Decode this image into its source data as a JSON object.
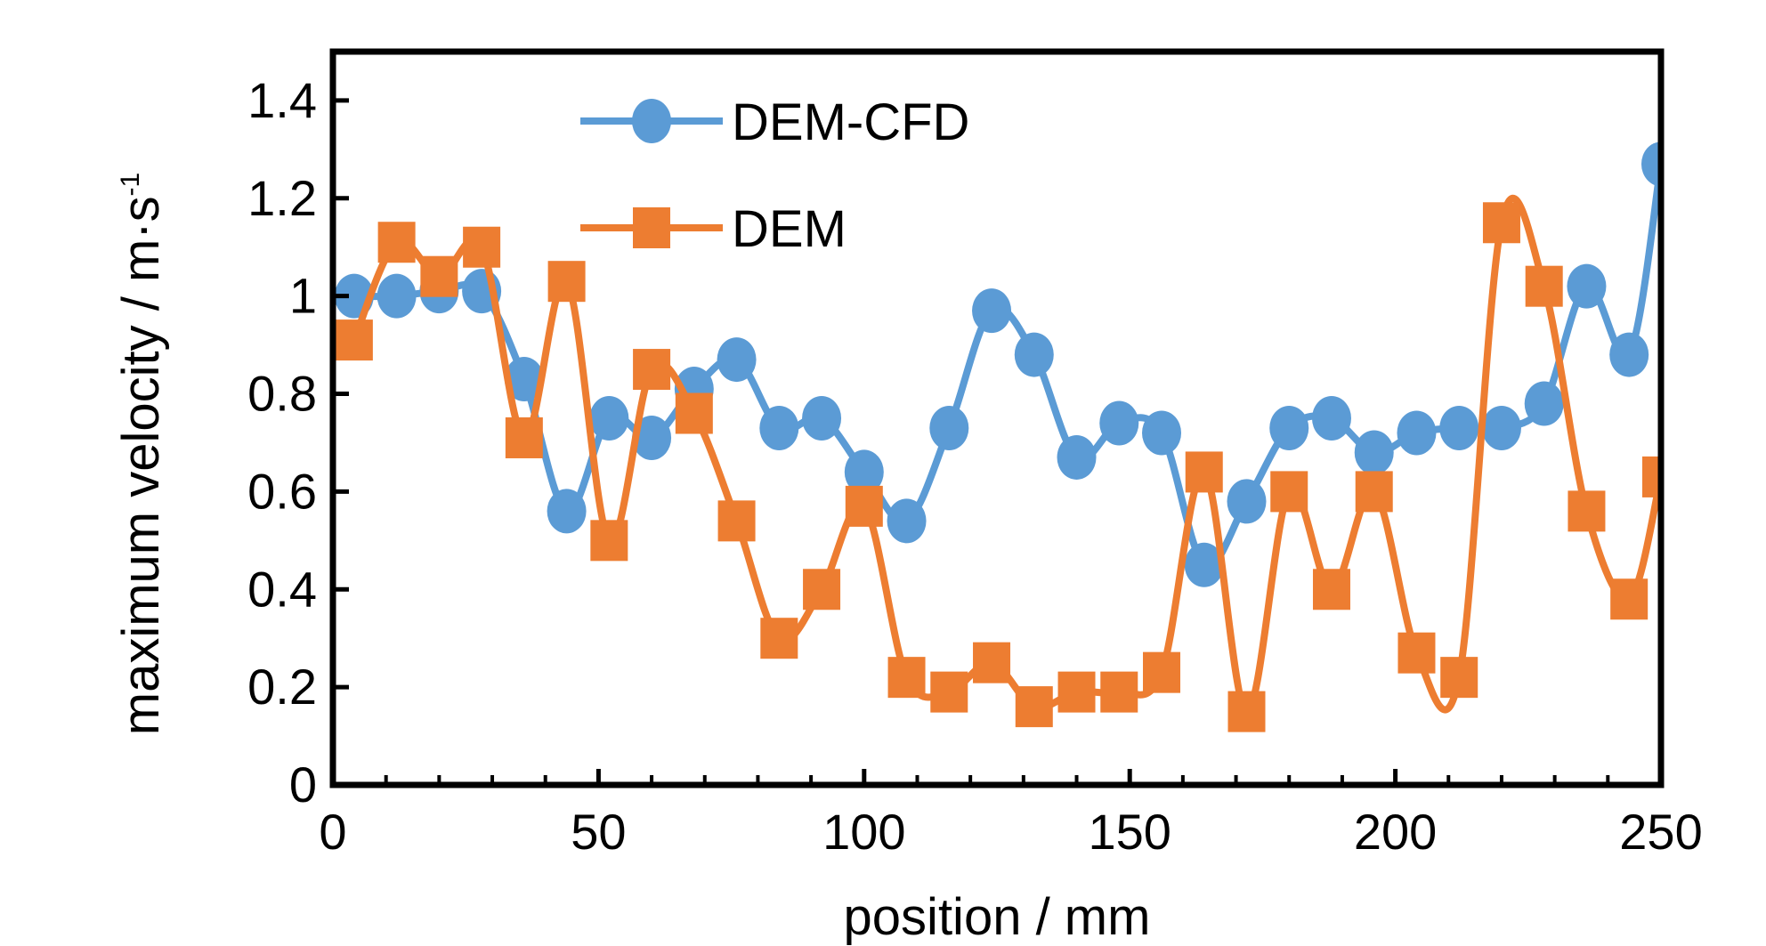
{
  "chart_data": {
    "type": "line",
    "xlabel": "position / mm",
    "ylabel": "maximum velocity / m·s",
    "ylabel_superscript": "-1",
    "xlim": [
      0,
      250
    ],
    "ylim": [
      0,
      1.5
    ],
    "xticks": [
      0,
      50,
      100,
      150,
      200,
      250
    ],
    "yticks": [
      0,
      0.2,
      0.4,
      0.6,
      0.8,
      1,
      1.2,
      1.4
    ],
    "ytick_labels": [
      "0",
      "0.2",
      "0.4",
      "0.6",
      "0.8",
      "1",
      "1.2",
      "1.4"
    ],
    "grid": false,
    "legend_position": "top-left",
    "series": [
      {
        "name": "DEM-CFD",
        "color": "#5b9bd5",
        "marker": "circle",
        "x": [
          4,
          12,
          20,
          28,
          36,
          44,
          52,
          60,
          68,
          76,
          84,
          92,
          100,
          108,
          116,
          124,
          132,
          140,
          148,
          156,
          164,
          172,
          180,
          188,
          196,
          204,
          212,
          220,
          228,
          236,
          244,
          250
        ],
        "y": [
          1.0,
          1.0,
          1.01,
          1.01,
          0.83,
          0.56,
          0.75,
          0.71,
          0.81,
          0.87,
          0.73,
          0.75,
          0.64,
          0.54,
          0.73,
          0.97,
          0.88,
          0.67,
          0.74,
          0.72,
          0.45,
          0.58,
          0.73,
          0.75,
          0.68,
          0.72,
          0.73,
          0.73,
          0.78,
          1.02,
          0.88,
          1.27
        ]
      },
      {
        "name": "DEM",
        "color": "#ed7d31",
        "marker": "square",
        "x": [
          4,
          12,
          20,
          28,
          36,
          44,
          52,
          60,
          68,
          76,
          84,
          92,
          100,
          108,
          116,
          124,
          132,
          140,
          148,
          156,
          164,
          172,
          180,
          188,
          196,
          204,
          212,
          220,
          228,
          236,
          244,
          250
        ],
        "y": [
          0.91,
          1.11,
          1.04,
          1.1,
          0.71,
          1.03,
          0.5,
          0.85,
          0.76,
          0.54,
          0.3,
          0.4,
          0.57,
          0.22,
          0.19,
          0.25,
          0.16,
          0.19,
          0.19,
          0.23,
          0.64,
          0.15,
          0.6,
          0.4,
          0.6,
          0.27,
          0.22,
          1.15,
          1.02,
          0.56,
          0.38,
          0.63
        ]
      }
    ]
  }
}
